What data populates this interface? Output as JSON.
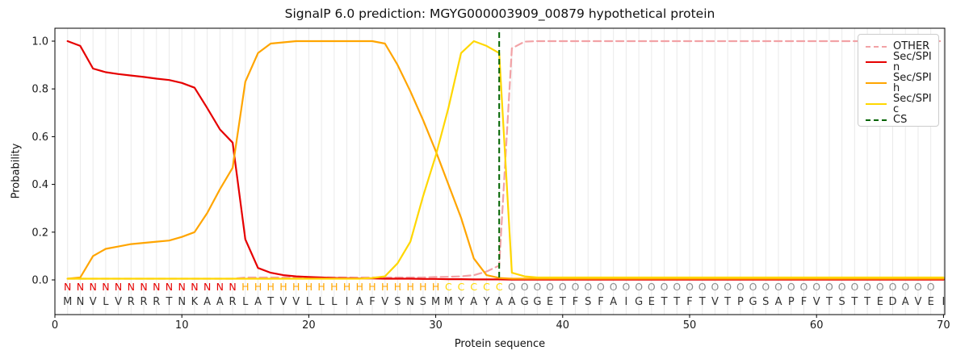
{
  "header": {
    "title": "SignalP 6.0 prediction: MGYG000003909_00879 hypothetical protein"
  },
  "axes": {
    "xlabel": "Protein sequence",
    "ylabel": "Probability",
    "xticks": [
      "0",
      "10",
      "20",
      "30",
      "40",
      "50",
      "60",
      "70"
    ],
    "yticks": [
      "0.0",
      "0.2",
      "0.4",
      "0.6",
      "0.8",
      "1.0"
    ]
  },
  "legend": {
    "position": "upper right",
    "items": [
      {
        "label": "OTHER",
        "color": "#f2a2a6",
        "style": "dashed"
      },
      {
        "label": "Sec/SPI n",
        "color": "#e60000",
        "style": "solid"
      },
      {
        "label": "Sec/SPI h",
        "color": "#ffa500",
        "style": "solid"
      },
      {
        "label": "Sec/SPI c",
        "color": "#ffd700",
        "style": "solid"
      },
      {
        "label": "CS",
        "color": "#006400",
        "style": "dashed"
      }
    ]
  },
  "colors": {
    "grid": "#eaeaea",
    "spine": "#000000",
    "tick_text": "#1a1a1a",
    "residue_text": "#333333",
    "other_region_text": "#8c8c8c"
  },
  "chart_data": {
    "type": "line",
    "title": "SignalP 6.0 prediction: MGYG000003909_00879 hypothetical protein",
    "xlabel": "Protein sequence",
    "ylabel": "Probability",
    "xlim": [
      0,
      70.1
    ],
    "ylim": [
      -0.15,
      1.055
    ],
    "grid": "vertical lines at every residue position",
    "legend_position": "upper right",
    "x_start": 1,
    "x_end": 70,
    "series": [
      {
        "name": "OTHER",
        "color": "#f2a2a6",
        "dash": [
          9,
          5
        ],
        "values": [
          0.005,
          0.005,
          0.005,
          0.005,
          0.005,
          0.005,
          0.005,
          0.005,
          0.005,
          0.005,
          0.005,
          0.005,
          0.005,
          0.005,
          0.01,
          0.01,
          0.01,
          0.01,
          0.01,
          0.01,
          0.01,
          0.01,
          0.01,
          0.01,
          0.01,
          0.01,
          0.01,
          0.01,
          0.01,
          0.012,
          0.013,
          0.015,
          0.02,
          0.035,
          0.06,
          0.97,
          0.998,
          1.0,
          1.0,
          1.0,
          1.0,
          1.0,
          1.0,
          1.0,
          1.0,
          1.0,
          1.0,
          1.0,
          1.0,
          1.0,
          1.0,
          1.0,
          1.0,
          1.0,
          1.0,
          1.0,
          1.0,
          1.0,
          1.0,
          1.0,
          1.0,
          1.0,
          1.0,
          1.0,
          1.0,
          1.0,
          1.0,
          1.0,
          1.0,
          1.0
        ]
      },
      {
        "name": "Sec/SPI n",
        "color": "#e60000",
        "dash": null,
        "values": [
          1.0,
          0.98,
          0.885,
          0.87,
          0.862,
          0.856,
          0.85,
          0.843,
          0.837,
          0.825,
          0.805,
          0.72,
          0.63,
          0.575,
          0.17,
          0.05,
          0.03,
          0.02,
          0.015,
          0.012,
          0.01,
          0.008,
          0.007,
          0.006,
          0.006,
          0.005,
          0.005,
          0.005,
          0.004,
          0.004,
          0.003,
          0.003,
          0.002,
          0.002,
          0.002,
          0.001,
          0.001,
          0.001,
          0.001,
          0.001,
          0.001,
          0.001,
          0.001,
          0.001,
          0.001,
          0.001,
          0.001,
          0.001,
          0.001,
          0.001,
          0.001,
          0.001,
          0.001,
          0.001,
          0.001,
          0.001,
          0.001,
          0.001,
          0.001,
          0.001,
          0.001,
          0.001,
          0.001,
          0.001,
          0.001,
          0.001,
          0.001,
          0.001,
          0.001,
          0.001
        ]
      },
      {
        "name": "Sec/SPI h",
        "color": "#ffa500",
        "dash": null,
        "values": [
          0.005,
          0.01,
          0.1,
          0.13,
          0.14,
          0.15,
          0.155,
          0.16,
          0.165,
          0.18,
          0.2,
          0.28,
          0.38,
          0.47,
          0.83,
          0.95,
          0.99,
          0.995,
          1.0,
          1.0,
          1.0,
          1.0,
          1.0,
          1.0,
          1.0,
          0.99,
          0.9,
          0.79,
          0.67,
          0.54,
          0.4,
          0.26,
          0.09,
          0.02,
          0.008,
          0.005,
          0.005,
          0.005,
          0.005,
          0.005,
          0.005,
          0.005,
          0.005,
          0.005,
          0.005,
          0.005,
          0.005,
          0.005,
          0.005,
          0.005,
          0.005,
          0.005,
          0.005,
          0.005,
          0.005,
          0.005,
          0.005,
          0.005,
          0.005,
          0.005,
          0.005,
          0.005,
          0.005,
          0.005,
          0.005,
          0.005,
          0.005,
          0.005,
          0.005,
          0.005
        ]
      },
      {
        "name": "Sec/SPI c",
        "color": "#ffd700",
        "dash": null,
        "values": [
          0.005,
          0.005,
          0.005,
          0.005,
          0.005,
          0.005,
          0.005,
          0.005,
          0.005,
          0.005,
          0.005,
          0.005,
          0.005,
          0.005,
          0.005,
          0.005,
          0.005,
          0.005,
          0.005,
          0.005,
          0.005,
          0.005,
          0.005,
          0.005,
          0.008,
          0.015,
          0.07,
          0.16,
          0.35,
          0.52,
          0.72,
          0.95,
          1.0,
          0.98,
          0.95,
          0.03,
          0.015,
          0.01,
          0.01,
          0.01,
          0.01,
          0.01,
          0.01,
          0.01,
          0.01,
          0.01,
          0.01,
          0.01,
          0.01,
          0.01,
          0.01,
          0.01,
          0.01,
          0.01,
          0.01,
          0.01,
          0.01,
          0.01,
          0.01,
          0.01,
          0.01,
          0.01,
          0.01,
          0.01,
          0.01,
          0.01,
          0.01,
          0.01,
          0.01,
          0.01
        ]
      },
      {
        "name": "CS",
        "color": "#006400",
        "dash": [
          7,
          4
        ],
        "type": "vline",
        "x": 35
      }
    ],
    "sequence": {
      "residues": "MNVLVRRRTNKAARLATVVLLLIAFVSNSMMYAYAAGGETFSFAIGETTFTVTPGSAPFVTSTTEDAVEI",
      "regions": "NNNNNNNNNNNNNNHHHHHHHHHHHHHHHHCCCCCOOOOOOOOOOOOOOOOOOOOOOOOOOOOOOOOOO",
      "region_colors": {
        "N": "#e60000",
        "H": "#ffa500",
        "C": "#ffd700",
        "O": "#8c8c8c"
      },
      "residue_color": "#333333"
    }
  }
}
